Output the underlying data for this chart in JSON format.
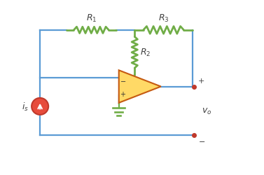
{
  "bg_color": "#ffffff",
  "wire_color": "#5b9bd5",
  "resistor_color": "#70ad47",
  "opamp_fill": "#ffd966",
  "opamp_edge": "#c55a11",
  "source_fill": "#e74c3c",
  "source_edge": "#c0392b",
  "terminal_color": "#c0392b",
  "ground_color": "#70ad47",
  "text_color": "#404040",
  "wire_lw": 1.6,
  "resistor_lw": 2.0,
  "ground_lw": 1.6,
  "figsize": [
    3.77,
    2.51
  ],
  "dpi": 100
}
